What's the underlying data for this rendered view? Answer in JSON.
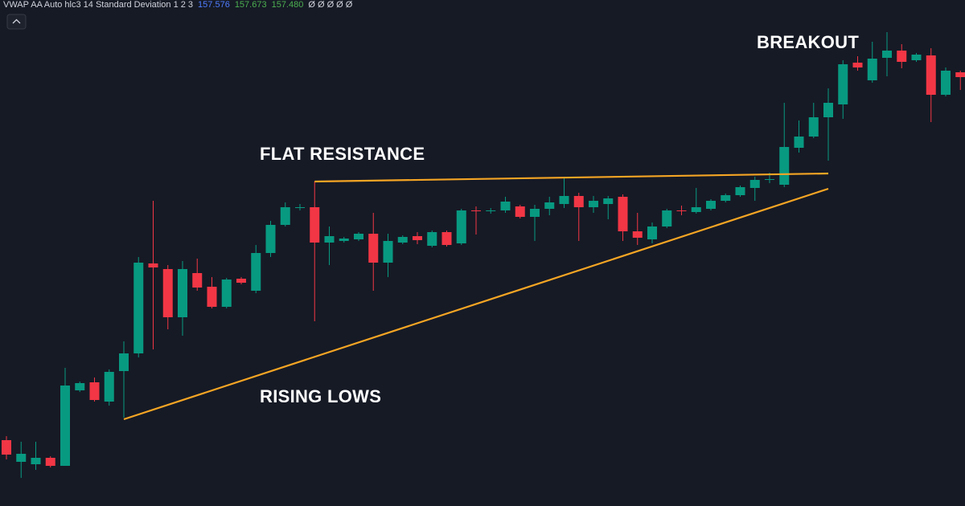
{
  "indicator": {
    "name": "VWAP AA Auto hlc3 14 Standard Deviation 1 2 3",
    "values": [
      {
        "text": "157.576",
        "color": "#4f7cff"
      },
      {
        "text": "157.673",
        "color": "#4caf50"
      },
      {
        "text": "157.480",
        "color": "#4caf50"
      }
    ],
    "extra": "Ø Ø Ø Ø Ø"
  },
  "chart_data": {
    "type": "candlestick",
    "up_color": "#089981",
    "down_color": "#f23645",
    "ylim": [
      0,
      630
    ],
    "open": [
      82,
      55,
      52,
      60,
      50,
      144,
      154,
      130,
      168,
      190,
      302,
      295,
      235,
      290,
      273,
      248,
      283,
      268,
      315,
      350,
      371,
      372,
      328,
      330,
      332,
      339,
      303,
      328,
      336,
      324,
      341,
      327,
      368,
      367,
      368,
      373,
      360,
      370,
      376,
      386,
      372,
      376,
      385,
      342,
      332,
      348,
      368,
      366,
      370,
      380,
      387,
      396,
      406,
      400,
      446,
      460,
      484,
      500,
      552,
      530,
      558,
      567,
      555,
      561,
      512,
      540
    ],
    "high": [
      87,
      80,
      80,
      62,
      172,
      155,
      160,
      170,
      205,
      310,
      380,
      300,
      305,
      308,
      285,
      284,
      285,
      325,
      355,
      378,
      376,
      404,
      348,
      335,
      341,
      365,
      339,
      337,
      341,
      343,
      343,
      370,
      373,
      371,
      385,
      375,
      375,
      385,
      408,
      390,
      386,
      386,
      388,
      365,
      353,
      370,
      374,
      396,
      382,
      389,
      399,
      410,
      415,
      502,
      480,
      502,
      520,
      555,
      560,
      578,
      590,
      575,
      564,
      570,
      546,
      542
    ],
    "low": [
      58,
      35,
      45,
      48,
      50,
      142,
      130,
      125,
      110,
      185,
      195,
      220,
      212,
      268,
      246,
      246,
      276,
      265,
      310,
      348,
      368,
      230,
      300,
      328,
      330,
      268,
      285,
      326,
      326,
      322,
      323,
      325,
      338,
      364,
      365,
      358,
      330,
      362,
      371,
      330,
      365,
      357,
      330,
      325,
      327,
      346,
      362,
      364,
      368,
      378,
      385,
      380,
      402,
      397,
      440,
      458,
      430,
      482,
      542,
      527,
      535,
      545,
      553,
      478,
      510,
      518
    ],
    "close": [
      64,
      65,
      60,
      50,
      150,
      153,
      132,
      167,
      190,
      303,
      297,
      235,
      295,
      272,
      248,
      282,
      278,
      315,
      350,
      372,
      372,
      328,
      336,
      333,
      339,
      303,
      330,
      335,
      331,
      341,
      325,
      368,
      367,
      368,
      379,
      360,
      370,
      378,
      386,
      372,
      380,
      383,
      342,
      334,
      348,
      368,
      367,
      372,
      380,
      387,
      397,
      406,
      407,
      447,
      460,
      484,
      502,
      550,
      546,
      557,
      567,
      553,
      562,
      512,
      542,
      534
    ],
    "annotations": [
      {
        "text": "FLAT RESISTANCE",
        "color": "#f5a524",
        "points": [
          {
            "x": 21,
            "y": 404
          },
          {
            "x": 56,
            "y": 414
          }
        ]
      },
      {
        "text": "RISING LOWS",
        "color": "#f5a524",
        "points": [
          {
            "x": 8,
            "y": 108
          },
          {
            "x": 56,
            "y": 395
          }
        ]
      },
      {
        "text": "BREAKOUT"
      }
    ]
  }
}
